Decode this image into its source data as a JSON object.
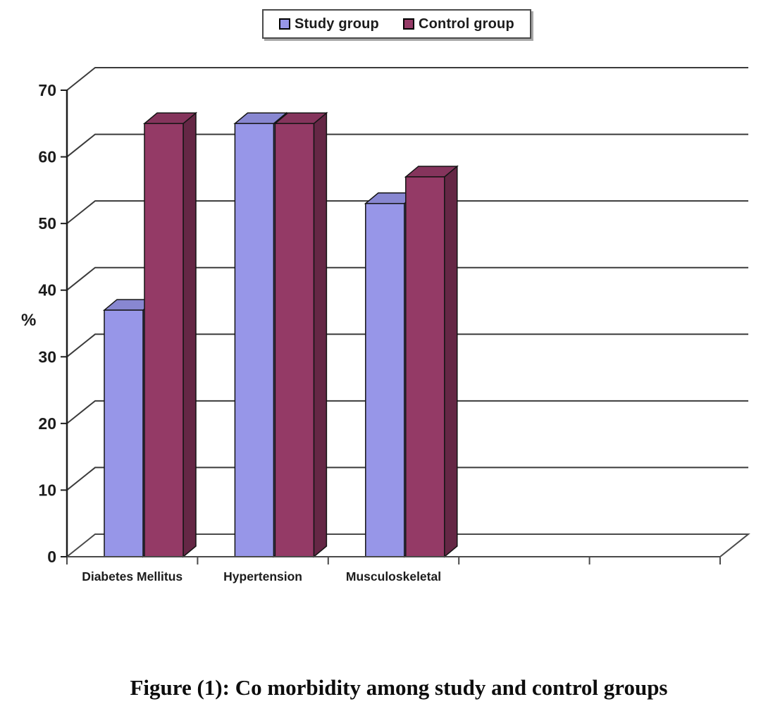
{
  "figure": {
    "caption": "Figure (1): Co morbidity among study and control groups"
  },
  "chart_data": {
    "type": "bar",
    "style": "3d-clustered-column",
    "title": "",
    "categories": [
      "Diabetes Mellitus",
      "Hypertension",
      "Musculoskeletal"
    ],
    "series": [
      {
        "name": "Study group",
        "color": "#9796E8",
        "values": [
          37,
          65,
          53
        ]
      },
      {
        "name": "Control group",
        "color": "#943A66",
        "values": [
          65,
          65,
          57
        ]
      }
    ],
    "xlabel": "",
    "ylabel": "%",
    "ylim": [
      0,
      70
    ],
    "yticks": [
      0,
      10,
      20,
      30,
      40,
      50,
      60,
      70
    ],
    "grid": true,
    "legend_position": "top-center",
    "category_slots": 5,
    "colors": {
      "axis": "#1d1d1d",
      "grid": "#3b3b3b",
      "floor": "#4a4a4a",
      "bar_outline": "#141414",
      "text": "#1c1c1c"
    }
  }
}
